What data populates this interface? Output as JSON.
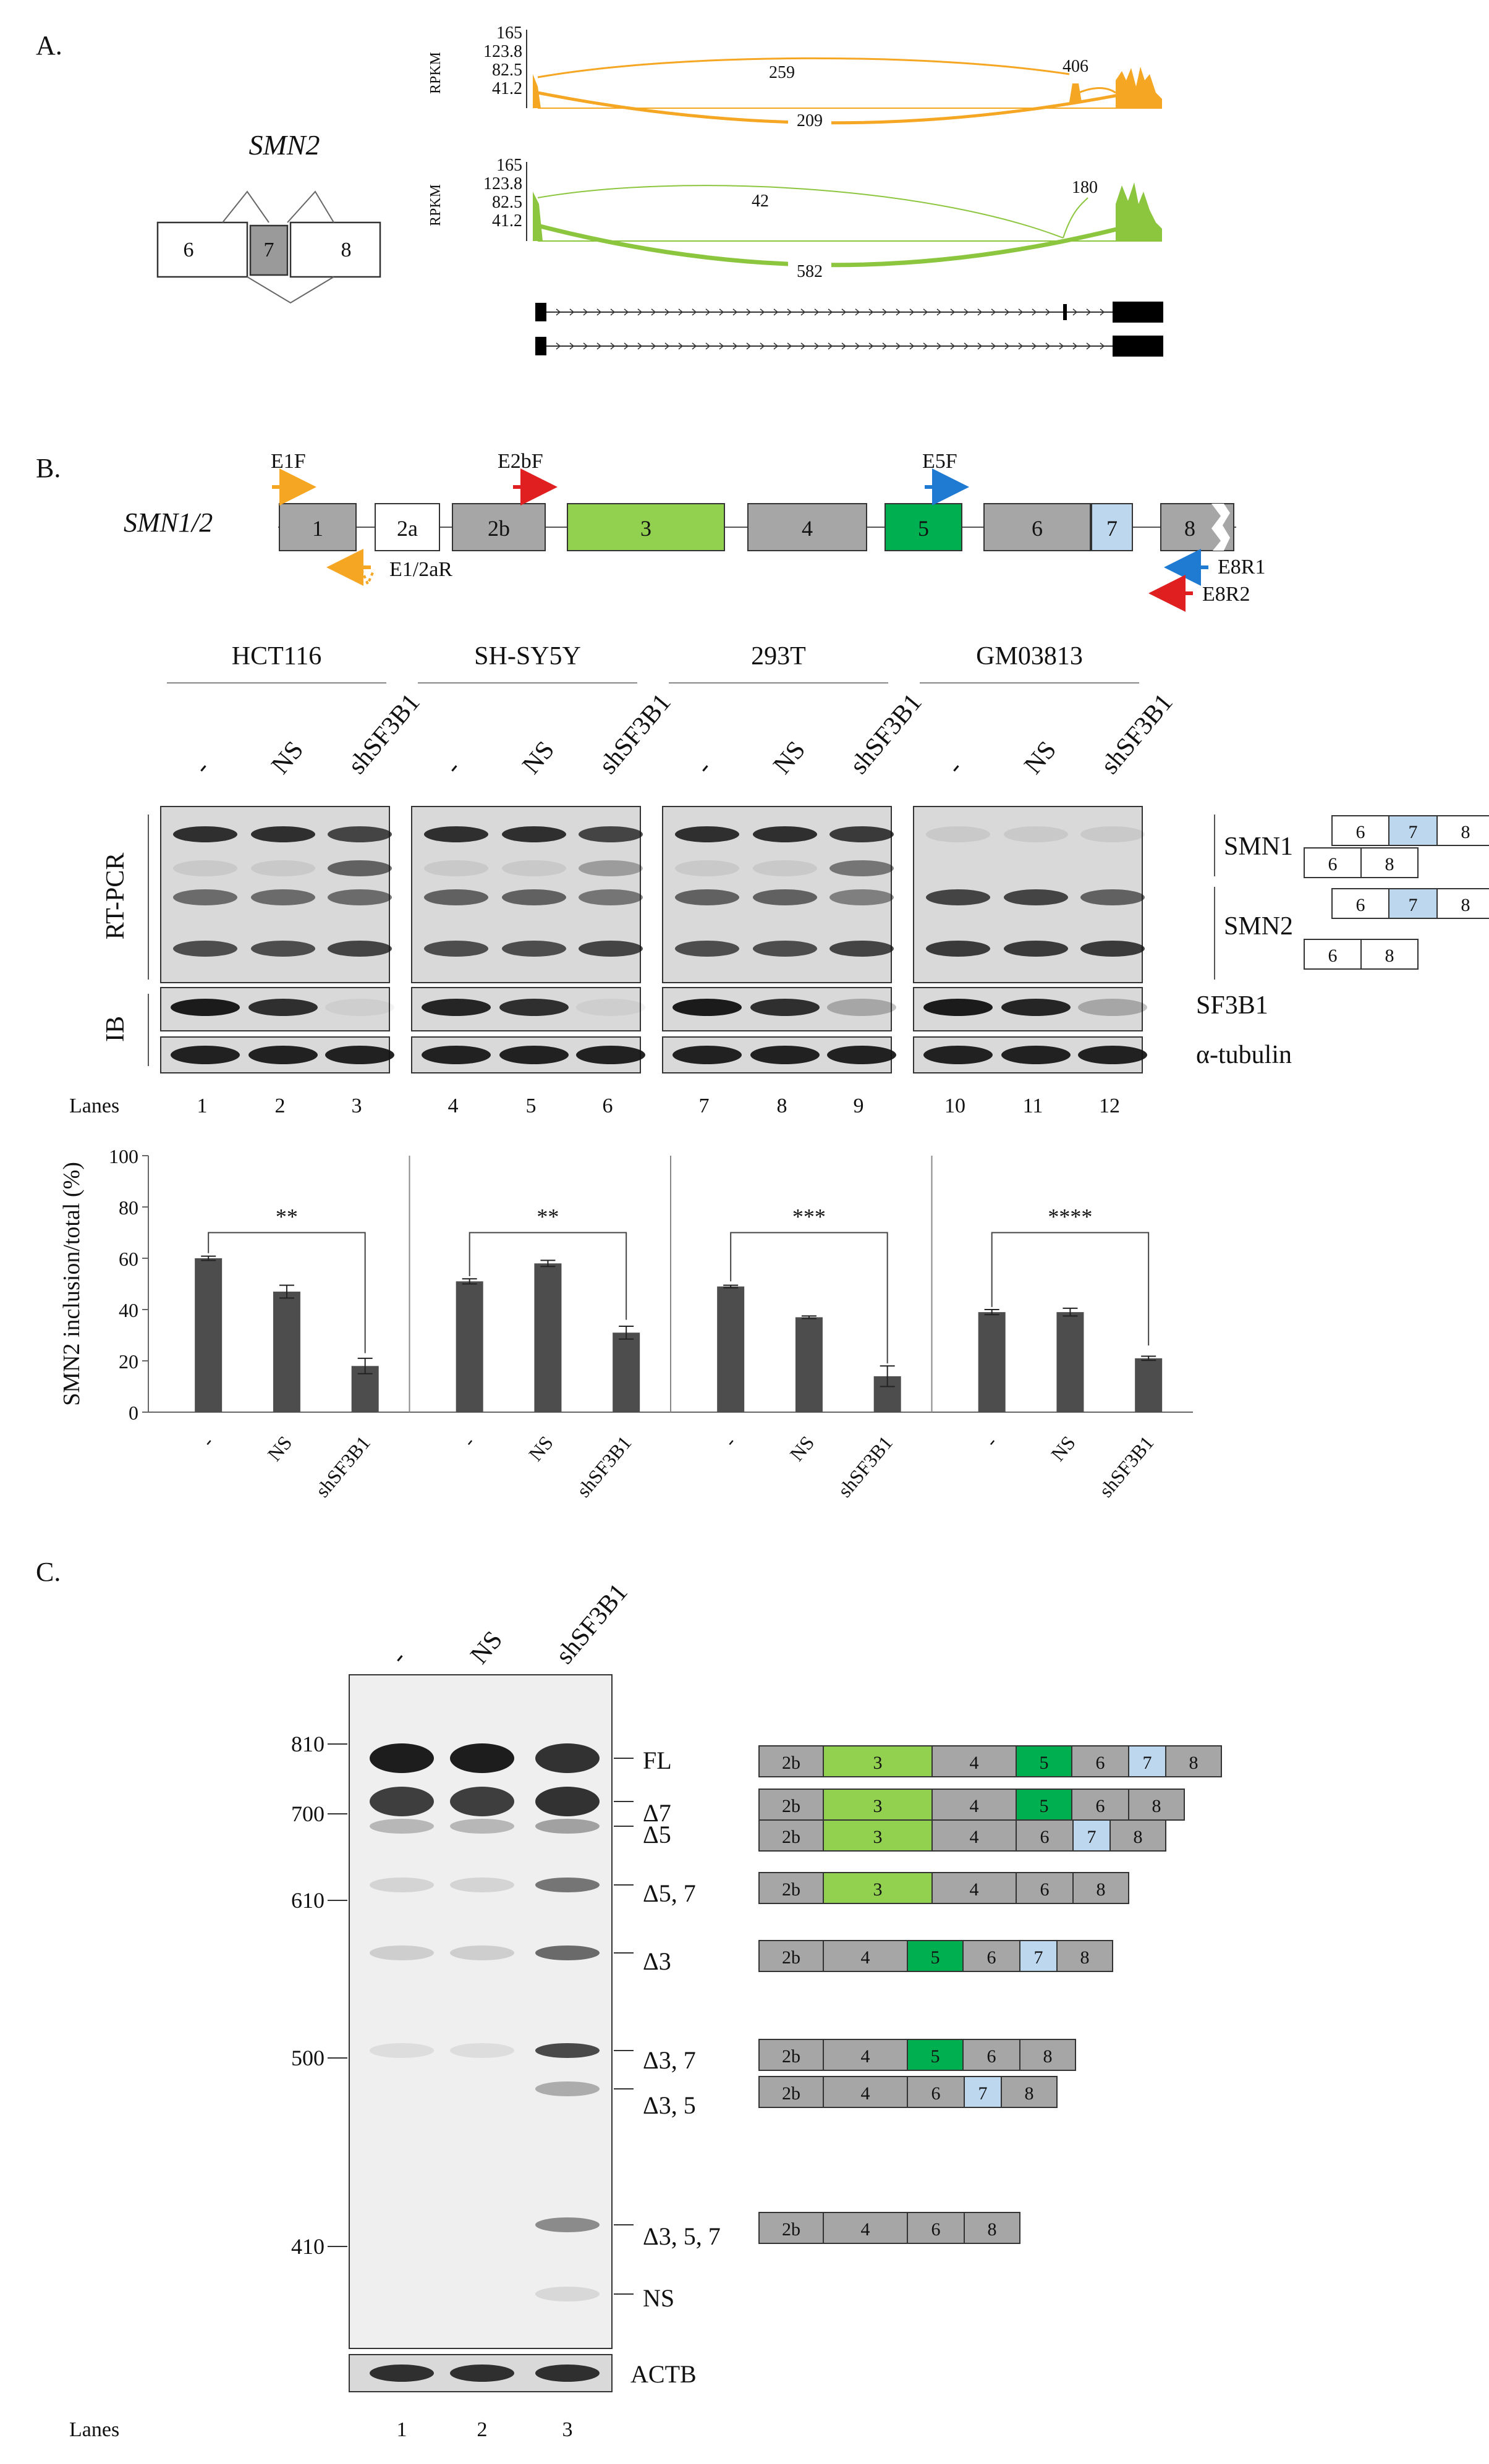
{
  "panel_a": {
    "label": "A.",
    "gene": "SMN2",
    "exons": [
      "6",
      "7",
      "8"
    ],
    "y_axis_label": "RPKM",
    "y_ticks": [
      "165",
      "123.8",
      "82.5",
      "41.2"
    ],
    "tracks": [
      {
        "color": "#f5a623",
        "junction_upper": "259",
        "junction_lower": "209",
        "junction_right": "406"
      },
      {
        "color": "#8cc63f",
        "junction_upper": "42",
        "junction_lower": "582",
        "junction_right": "180"
      }
    ]
  },
  "panel_b": {
    "label": "B.",
    "gene": "SMN1/2",
    "exons": [
      "1",
      "2a",
      "2b",
      "3",
      "4",
      "5",
      "6",
      "7",
      "8"
    ],
    "primers": {
      "e1f": "E1F",
      "e2bf": "E2bF",
      "e5f": "E5F",
      "e12ar": "E1/2aR",
      "e8r1": "E8R1",
      "e8r2": "E8R2"
    },
    "cell_lines": [
      "HCT116",
      "SH-SY5Y",
      "293T",
      "GM03813"
    ],
    "conditions": [
      "-",
      "NS",
      "shSF3B1"
    ],
    "rtpcr_label": "RT-PCR",
    "ib_label": "IB",
    "band_labels": {
      "smn1": "SMN1",
      "smn2": "SMN2",
      "sf3b1": "SF3B1",
      "tubulin": "α-tubulin"
    },
    "isoform_exons": {
      "with7": [
        "6",
        "7",
        "8"
      ],
      "without7": [
        "6",
        "8"
      ]
    },
    "lanes_label": "Lanes",
    "lanes": [
      "1",
      "2",
      "3",
      "4",
      "5",
      "6",
      "7",
      "8",
      "9",
      "10",
      "11",
      "12"
    ],
    "significance": [
      "**",
      "**",
      "***",
      "****"
    ]
  },
  "chart_data": {
    "type": "bar",
    "ylabel": "SMN2 inclusion/total (%)",
    "ylim": [
      0,
      100
    ],
    "yticks": [
      0,
      20,
      40,
      60,
      80,
      100
    ],
    "groups": [
      "HCT116",
      "SH-SY5Y",
      "293T",
      "GM03813"
    ],
    "categories": [
      "-",
      "NS",
      "shSF3B1"
    ],
    "series": [
      {
        "group": "HCT116",
        "values": [
          60,
          47,
          18
        ],
        "errors": [
          0.8,
          2.5,
          3
        ]
      },
      {
        "group": "SH-SY5Y",
        "values": [
          51,
          58,
          31
        ],
        "errors": [
          1,
          1.2,
          2.5
        ]
      },
      {
        "group": "293T",
        "values": [
          49,
          37,
          14
        ],
        "errors": [
          0.5,
          0.5,
          4
        ]
      },
      {
        "group": "GM03813",
        "values": [
          39,
          39,
          21
        ],
        "errors": [
          1,
          1.5,
          0.8
        ]
      }
    ],
    "color": "#4d4d4d"
  },
  "panel_c": {
    "label": "C.",
    "conditions": [
      "-",
      "NS",
      "shSF3B1"
    ],
    "markers": [
      "810",
      "700",
      "610",
      "500",
      "410"
    ],
    "bands": [
      "FL",
      "Δ7",
      "Δ5",
      "Δ5, 7",
      "Δ3",
      "Δ3, 7",
      "Δ3, 5",
      "Δ3, 5, 7",
      "NS"
    ],
    "actb_label": "ACTB",
    "lanes_label": "Lanes",
    "lanes": [
      "1",
      "2",
      "3"
    ],
    "isoforms": [
      [
        "2b",
        "3",
        "4",
        "5",
        "6",
        "7",
        "8"
      ],
      [
        "2b",
        "3",
        "4",
        "5",
        "6",
        "8"
      ],
      [
        "2b",
        "3",
        "4",
        "6",
        "7",
        "8"
      ],
      [
        "2b",
        "3",
        "4",
        "6",
        "8"
      ],
      [
        "2b",
        "4",
        "5",
        "6",
        "7",
        "8"
      ],
      [
        "2b",
        "4",
        "5",
        "6",
        "8"
      ],
      [
        "2b",
        "4",
        "6",
        "7",
        "8"
      ],
      [
        "2b",
        "4",
        "6",
        "8"
      ]
    ],
    "colors": {
      "gray": "#a6a6a6",
      "exon3": "#92d050",
      "exon5": "#00b050",
      "exon7": "#bdd7ee"
    }
  }
}
